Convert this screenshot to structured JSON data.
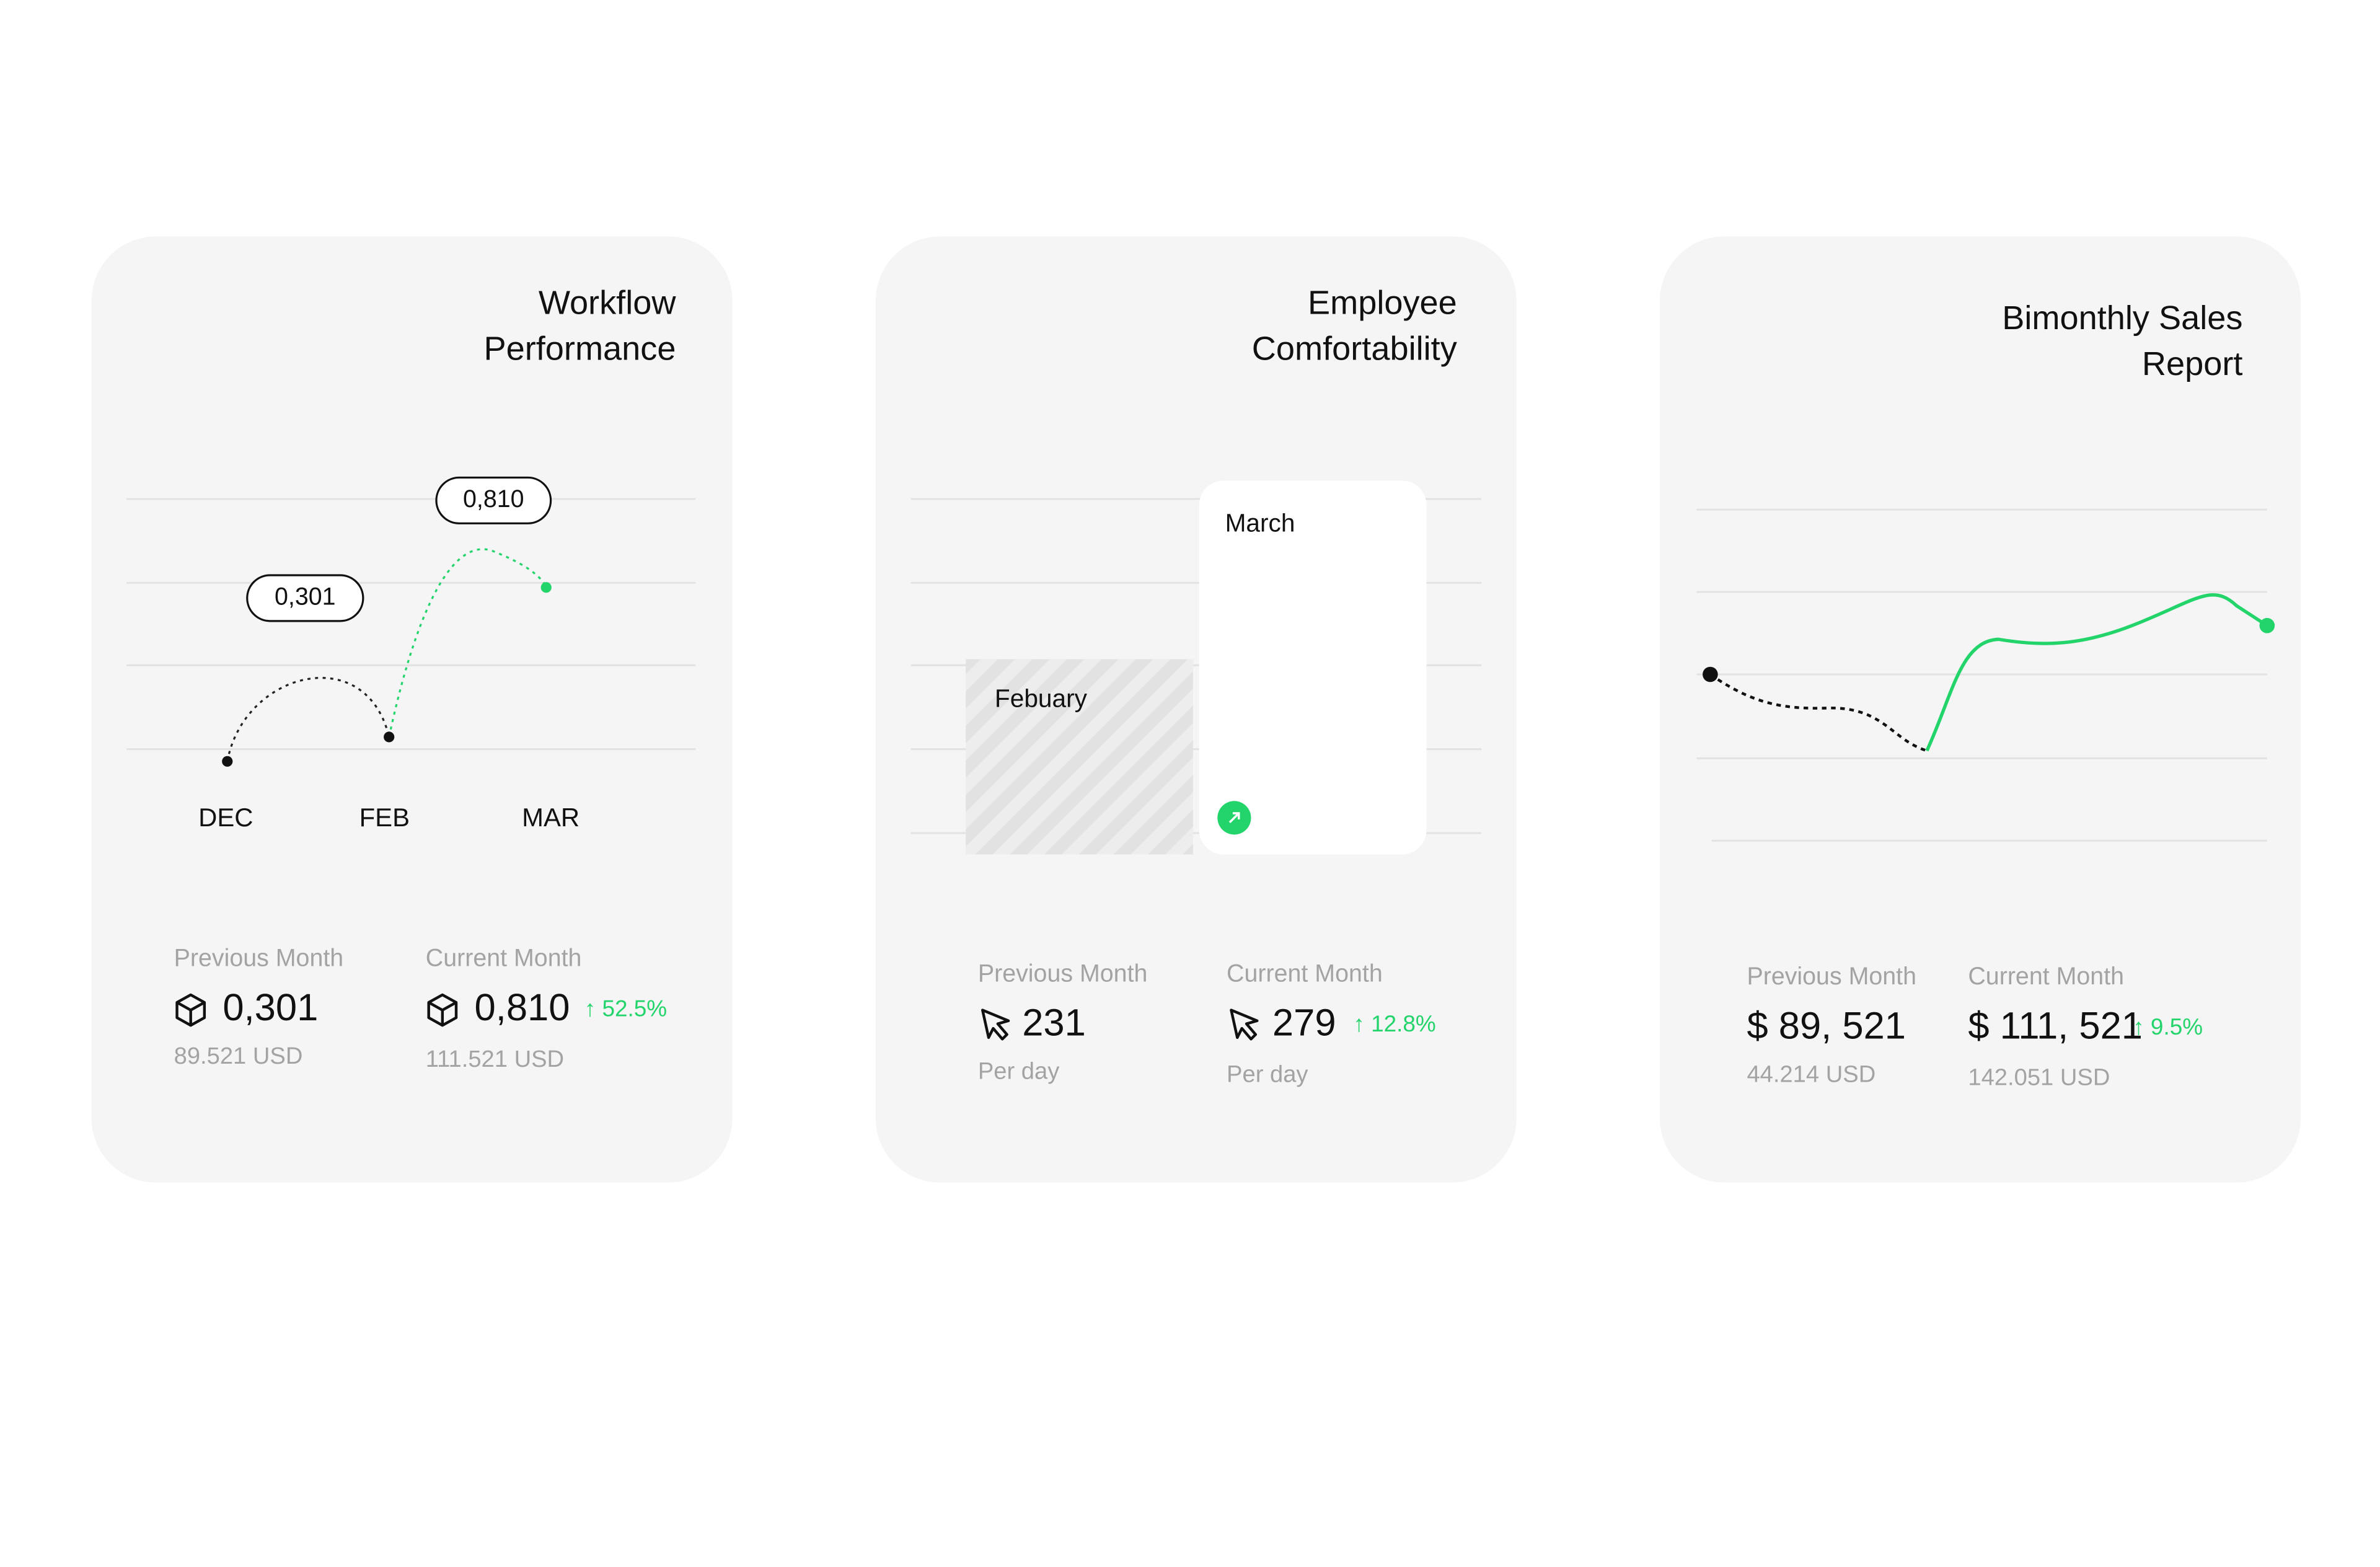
{
  "cards": [
    {
      "title": [
        "Workflow",
        "Performance"
      ],
      "bubbles": [
        "0,810",
        "0,301"
      ],
      "months": [
        "DEC",
        "FEB",
        "MAR"
      ],
      "previous": {
        "label": "Previous Month",
        "value": "0,301",
        "sub": "89.521 USD"
      },
      "current": {
        "label": "Current Month",
        "value": "0,810",
        "change": "↑ 52.5%",
        "sub": "111.521 USD"
      }
    },
    {
      "title": [
        "Employee",
        "Comfortability"
      ],
      "bars": [
        "Febuary",
        "March"
      ],
      "previous": {
        "label": "Previous Month",
        "value": "231",
        "sub": "Per day"
      },
      "current": {
        "label": "Current Month",
        "value": "279",
        "change": "↑ 12.8%",
        "sub": "Per day"
      }
    },
    {
      "title": [
        "Bimonthly Sales",
        "Report"
      ],
      "previous": {
        "label": "Previous Month",
        "value": "$ 89, 521",
        "sub": "44.214 USD"
      },
      "current": {
        "label": "Current Month",
        "value": "$ 111, 521",
        "change": "↑ 9.5%",
        "sub": "142.051 USD"
      }
    }
  ]
}
